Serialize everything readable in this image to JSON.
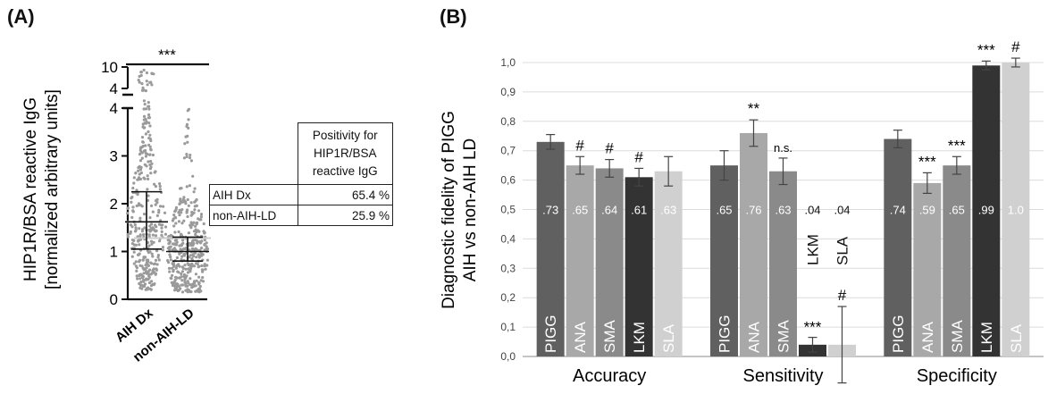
{
  "panel_a": {
    "label": "(A)",
    "table": {
      "header": "Positivity for HIP1R/BSA reactive IgG",
      "header_lines": [
        "Positivity for",
        "HIP1R/BSA",
        "reactive IgG"
      ],
      "rows": [
        {
          "group": "AIH Dx",
          "value": "65.4 %"
        },
        {
          "group": "non-AIH-LD",
          "value": "25.9 %"
        }
      ]
    }
  },
  "panel_b": {
    "label": "(B)"
  },
  "chart_data": [
    {
      "type": "scatter",
      "ylabel": "HIP1R/BSA reactive IgG [normalized arbitrary units]",
      "ylabel_lines": [
        "HIP1R/BSA reactive IgG",
        "[normalized arbitrary units]"
      ],
      "categories": [
        "AIH Dx",
        "non-AIH-LD"
      ],
      "y_ticks_lower": [
        0,
        1,
        2,
        3,
        4
      ],
      "y_ticks_upper": [
        4,
        10
      ],
      "axis_break": [
        4,
        4
      ],
      "significance": "***",
      "cutoff": 1.28,
      "cutoff_color": "#cccccc",
      "point_color": "#9a9a9a",
      "series": [
        {
          "name": "AIH Dx",
          "median": 1.62,
          "q1": 1.05,
          "q3": 2.25
        },
        {
          "name": "non-AIH-LD",
          "median": 1.0,
          "q1": 0.8,
          "q3": 1.3
        }
      ]
    },
    {
      "type": "bar",
      "ylabel": "Diagnostic fidelity of PIGG AIH vs non-AIH LD",
      "ylabel_lines": [
        "Diagnostic fidelity of PIGG",
        "AIH vs non-AIH LD"
      ],
      "ylim": [
        0,
        1
      ],
      "y_ticks": [
        "0,0",
        "0,1",
        "0,2",
        "0,3",
        "0,4",
        "0,5",
        "0,6",
        "0,7",
        "0,8",
        "0,9",
        "1,0"
      ],
      "grid": true,
      "groups": [
        {
          "name": "Accuracy",
          "bars": [
            {
              "marker": "PIGG",
              "value": 0.73,
              "err": 0.025,
              "label": ".73",
              "sig": "",
              "color": "#606060"
            },
            {
              "marker": "ANA",
              "value": 0.65,
              "err": 0.03,
              "label": ".65",
              "sig": "#",
              "color": "#a8a8a8"
            },
            {
              "marker": "SMA",
              "value": 0.64,
              "err": 0.03,
              "label": ".64",
              "sig": "#",
              "color": "#8a8a8a"
            },
            {
              "marker": "LKM",
              "value": 0.61,
              "err": 0.03,
              "label": ".61",
              "sig": "#",
              "color": "#333333"
            },
            {
              "marker": "SLA",
              "value": 0.63,
              "err": 0.05,
              "label": ".63",
              "sig": "",
              "color": "#d0d0d0"
            }
          ]
        },
        {
          "name": "Sensitivity",
          "bars": [
            {
              "marker": "PIGG",
              "value": 0.65,
              "err": 0.05,
              "label": ".65",
              "sig": "",
              "color": "#606060"
            },
            {
              "marker": "ANA",
              "value": 0.76,
              "err": 0.045,
              "label": ".76",
              "sig": "**",
              "color": "#a8a8a8"
            },
            {
              "marker": "SMA",
              "value": 0.63,
              "err": 0.045,
              "label": ".63",
              "sig": "n.s.",
              "color": "#8a8a8a"
            },
            {
              "marker": "LKM",
              "value": 0.04,
              "err": 0.025,
              "label": ".04",
              "sig": "***",
              "color": "#333333"
            },
            {
              "marker": "SLA",
              "value": 0.04,
              "err": 0.13,
              "label": ".04",
              "sig": "#",
              "color": "#d0d0d0"
            }
          ]
        },
        {
          "name": "Specificity",
          "bars": [
            {
              "marker": "PIGG",
              "value": 0.74,
              "err": 0.03,
              "label": ".74",
              "sig": "",
              "color": "#606060"
            },
            {
              "marker": "ANA",
              "value": 0.59,
              "err": 0.035,
              "label": ".59",
              "sig": "***",
              "color": "#a8a8a8"
            },
            {
              "marker": "SMA",
              "value": 0.65,
              "err": 0.03,
              "label": ".65",
              "sig": "***",
              "color": "#8a8a8a"
            },
            {
              "marker": "LKM",
              "value": 0.99,
              "err": 0.015,
              "label": ".99",
              "sig": "***",
              "color": "#333333"
            },
            {
              "marker": "SLA",
              "value": 1.0,
              "err": 0.015,
              "label": "1.0",
              "sig": "#",
              "color": "#d0d0d0"
            }
          ]
        }
      ]
    }
  ]
}
